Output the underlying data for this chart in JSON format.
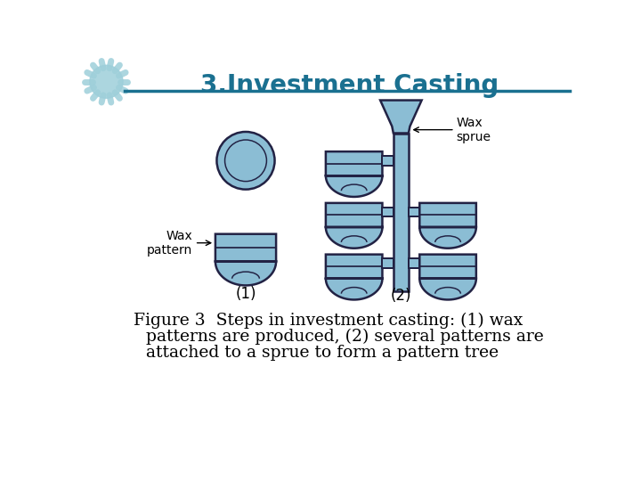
{
  "title": "3.Investment Casting",
  "title_color": "#1a7090",
  "title_fontsize": 20,
  "bg_color": "#ffffff",
  "wax_fill": "#8bbdd4",
  "wax_edge": "#222244",
  "caption_line1": "Figure 3  Steps in investment casting: (1) wax",
  "caption_line2": "patterns are produced, (2) several patterns are",
  "caption_line3": "attached to a sprue to form a pattern tree",
  "caption_fontsize": 13.5,
  "label_wax_pattern": "Wax\npattern",
  "label_wax_sprue": "Wax\nsprue",
  "label_1": "(1)",
  "label_2": "(2)",
  "gear_color": "#9ecfda",
  "line_color": "#1a7090",
  "lw": 1.8
}
